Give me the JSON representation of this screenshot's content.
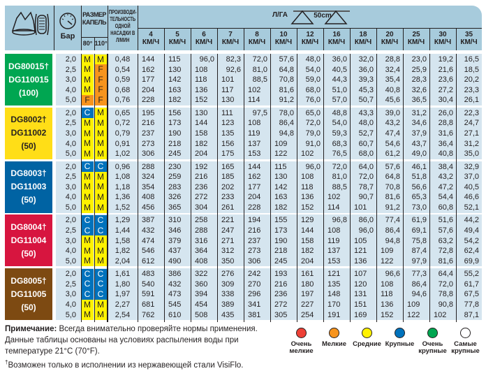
{
  "header": {
    "pressure_label": "Бар",
    "drop_size_label": "РАЗМЕР КАПЕЛЬ",
    "angle_80": "80°",
    "angle_110": "110°",
    "flow_label": "ПРОИЗВОДИ- ТЕЛЬНОСТЬ ОДНОЙ НАСАДКИ В Л/МИН",
    "rate_label": "Л/ГА",
    "spacing_label": "50cm",
    "speeds": [
      "4",
      "5",
      "6",
      "7",
      "8",
      "10",
      "12",
      "16",
      "18",
      "20",
      "25",
      "30",
      "35"
    ],
    "speed_unit": "КМ/Ч"
  },
  "colors": {
    "M": "#fff200",
    "F": "#f7941d",
    "C": "#0072bc",
    "cell": "#d5e5ef",
    "header": "#a7cbdc"
  },
  "groups": [
    {
      "line1": "DG80015†",
      "line2": "DG110015",
      "line3": "(100)",
      "color": "#00a651",
      "text": "#ffffff",
      "rows": [
        [
          "2,0",
          "M",
          "M",
          "0,48",
          "144",
          "115",
          "96,0",
          "82,3",
          "72,0",
          "57,6",
          "48,0",
          "36,0",
          "32,0",
          "28,8",
          "23,0",
          "19,2",
          "16,5"
        ],
        [
          "2,5",
          "M",
          "F",
          "0,54",
          "162",
          "130",
          "108",
          "92,6",
          "81,0",
          "64,8",
          "54,0",
          "40,5",
          "36,0",
          "32,4",
          "25,9",
          "21,6",
          "18,5"
        ],
        [
          "3,0",
          "M",
          "F",
          "0,59",
          "177",
          "142",
          "118",
          "101",
          "88,5",
          "70,8",
          "59,0",
          "44,3",
          "39,3",
          "35,4",
          "28,3",
          "23,6",
          "20,2"
        ],
        [
          "4,0",
          "M",
          "F",
          "0,68",
          "204",
          "163",
          "136",
          "117",
          "102",
          "81,6",
          "68,0",
          "51,0",
          "45,3",
          "40,8",
          "32,6",
          "27,2",
          "23,3"
        ],
        [
          "5,0",
          "F",
          "F",
          "0,76",
          "228",
          "182",
          "152",
          "130",
          "114",
          "91,2",
          "76,0",
          "57,0",
          "50,7",
          "45,6",
          "36,5",
          "30,4",
          "26,1"
        ]
      ]
    },
    {
      "line1": "DG8002†",
      "line2": "DG11002",
      "line3": "(50)",
      "color": "#ffde17",
      "text": "#231f20",
      "rows": [
        [
          "2,0",
          "C",
          "M",
          "0,65",
          "195",
          "156",
          "130",
          "111",
          "97,5",
          "78,0",
          "65,0",
          "48,8",
          "43,3",
          "39,0",
          "31,2",
          "26,0",
          "22,3"
        ],
        [
          "2,5",
          "M",
          "M",
          "0,72",
          "216",
          "173",
          "144",
          "123",
          "108",
          "86,4",
          "72,0",
          "54,0",
          "48,0",
          "43,2",
          "34,6",
          "28,8",
          "24,7"
        ],
        [
          "3,0",
          "M",
          "M",
          "0,79",
          "237",
          "190",
          "158",
          "135",
          "119",
          "94,8",
          "79,0",
          "59,3",
          "52,7",
          "47,4",
          "37,9",
          "31,6",
          "27,1"
        ],
        [
          "4,0",
          "M",
          "M",
          "0,91",
          "273",
          "218",
          "182",
          "156",
          "137",
          "109",
          "91,0",
          "68,3",
          "60,7",
          "54,6",
          "43,7",
          "36,4",
          "31,2"
        ],
        [
          "5,0",
          "M",
          "M",
          "1,02",
          "306",
          "245",
          "204",
          "175",
          "153",
          "122",
          "102",
          "76,5",
          "68,0",
          "61,2",
          "49,0",
          "40,8",
          "35,0"
        ]
      ]
    },
    {
      "line1": "DG8003†",
      "line2": "DG11003",
      "line3": "(50)",
      "color": "#0063a3",
      "text": "#ffffff",
      "rows": [
        [
          "2,0",
          "C",
          "C",
          "0,96",
          "288",
          "230",
          "192",
          "165",
          "144",
          "115",
          "96,0",
          "72,0",
          "64,0",
          "57,6",
          "46,1",
          "38,4",
          "32,9"
        ],
        [
          "2,5",
          "M",
          "M",
          "1,08",
          "324",
          "259",
          "216",
          "185",
          "162",
          "130",
          "108",
          "81,0",
          "72,0",
          "64,8",
          "51,8",
          "43,2",
          "37,0"
        ],
        [
          "3,0",
          "M",
          "M",
          "1,18",
          "354",
          "283",
          "236",
          "202",
          "177",
          "142",
          "118",
          "88,5",
          "78,7",
          "70,8",
          "56,6",
          "47,2",
          "40,5"
        ],
        [
          "4,0",
          "M",
          "M",
          "1,36",
          "408",
          "326",
          "272",
          "233",
          "204",
          "163",
          "136",
          "102",
          "90,7",
          "81,6",
          "65,3",
          "54,4",
          "46,6"
        ],
        [
          "5,0",
          "M",
          "M",
          "1,52",
          "456",
          "365",
          "304",
          "261",
          "228",
          "182",
          "152",
          "114",
          "101",
          "91,2",
          "73,0",
          "60,8",
          "52,1"
        ]
      ]
    },
    {
      "line1": "DG8004†",
      "line2": "DG11004",
      "line3": "(50)",
      "color": "#d7153f",
      "text": "#ffffff",
      "rows": [
        [
          "2,0",
          "C",
          "C",
          "1,29",
          "387",
          "310",
          "258",
          "221",
          "194",
          "155",
          "129",
          "96,8",
          "86,0",
          "77,4",
          "61,9",
          "51,6",
          "44,2"
        ],
        [
          "2,5",
          "C",
          "C",
          "1,44",
          "432",
          "346",
          "288",
          "247",
          "216",
          "173",
          "144",
          "108",
          "96,0",
          "86,4",
          "69,1",
          "57,6",
          "49,4"
        ],
        [
          "3,0",
          "M",
          "M",
          "1,58",
          "474",
          "379",
          "316",
          "271",
          "237",
          "190",
          "158",
          "119",
          "105",
          "94,8",
          "75,8",
          "63,2",
          "54,2"
        ],
        [
          "4,0",
          "M",
          "M",
          "1,82",
          "546",
          "437",
          "364",
          "312",
          "273",
          "218",
          "182",
          "137",
          "121",
          "109",
          "87,4",
          "72,8",
          "62,4"
        ],
        [
          "5,0",
          "M",
          "M",
          "2,04",
          "612",
          "490",
          "408",
          "350",
          "306",
          "245",
          "204",
          "153",
          "136",
          "122",
          "97,9",
          "81,6",
          "69,9"
        ]
      ]
    },
    {
      "line1": "DG8005†",
      "line2": "DG11005",
      "line3": "(50)",
      "color": "#7d4a12",
      "text": "#ffffff",
      "rows": [
        [
          "2,0",
          "C",
          "C",
          "1,61",
          "483",
          "386",
          "322",
          "276",
          "242",
          "193",
          "161",
          "121",
          "107",
          "96,6",
          "77,3",
          "64,4",
          "55,2"
        ],
        [
          "2,5",
          "C",
          "C",
          "1,80",
          "540",
          "432",
          "360",
          "309",
          "270",
          "216",
          "180",
          "135",
          "120",
          "108",
          "86,4",
          "72,0",
          "61,7"
        ],
        [
          "3,0",
          "C",
          "C",
          "1,97",
          "591",
          "473",
          "394",
          "338",
          "296",
          "236",
          "197",
          "148",
          "131",
          "118",
          "94,6",
          "78,8",
          "67,5"
        ],
        [
          "4,0",
          "M",
          "M",
          "2,27",
          "681",
          "545",
          "454",
          "389",
          "341",
          "272",
          "227",
          "170",
          "151",
          "136",
          "109",
          "90,8",
          "77,8"
        ],
        [
          "5,0",
          "M",
          "M",
          "2,54",
          "762",
          "610",
          "508",
          "435",
          "381",
          "305",
          "254",
          "191",
          "169",
          "152",
          "122",
          "102",
          "87,1"
        ]
      ]
    }
  ],
  "notes": {
    "note_bold": "Примечание:",
    "note_text": " Всегда внимательно проверяйте нормы применения.",
    "line2": "Данные таблицы основаны на условиях распыления воды при",
    "line3": "температуре 21°C (70°F).",
    "dagger": "†",
    "line4": "Возможен только в исполнении из нержавеющей стали VisiFlo."
  },
  "legend": [
    {
      "label": "Очень мелкие",
      "color": "#ee4036"
    },
    {
      "label": "Мелкие",
      "color": "#f7941d"
    },
    {
      "label": "Средние",
      "color": "#fff200"
    },
    {
      "label": "Крупные",
      "color": "#0072bc"
    },
    {
      "label": "Очень крупные",
      "color": "#00a651"
    },
    {
      "label": "Самые крупные",
      "color": "#ffffff"
    }
  ]
}
